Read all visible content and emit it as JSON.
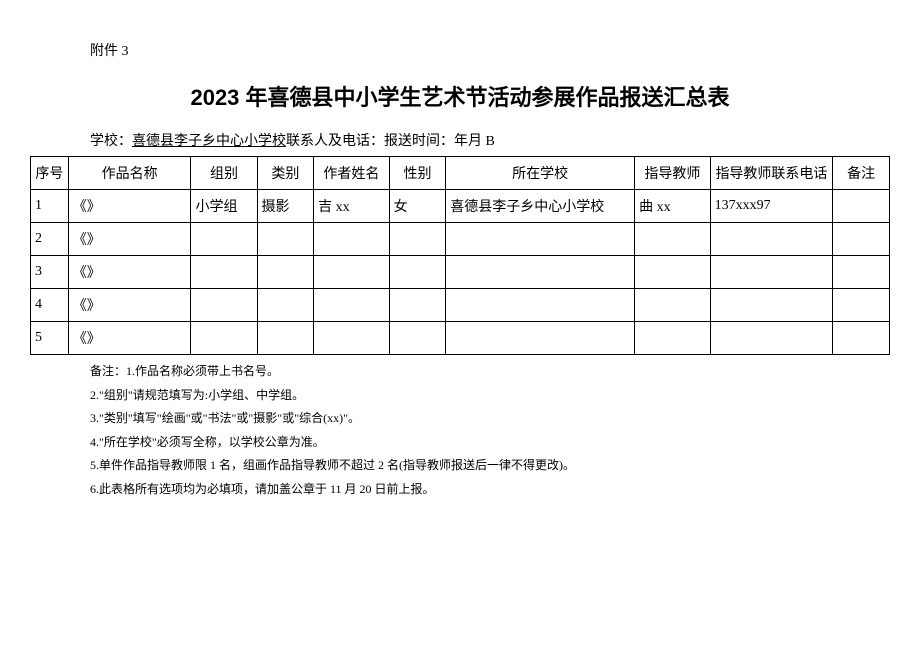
{
  "attachment_label": "附件 3",
  "title": "2023 年喜德县中小学生艺术节活动参展作品报送汇总表",
  "meta": {
    "school_label": "学校：",
    "school_name": "喜德县李子乡中心小学校",
    "contact_label": "联系人及电话：",
    "report_time_label": "报送时间：年月 B"
  },
  "columns": {
    "seq": "序号",
    "name": "作品名称",
    "group": "组别",
    "type": "类别",
    "author": "作者姓名",
    "gender": "性别",
    "school": "所在学校",
    "teacher": "指导教师",
    "phone": "指导教师联系电话",
    "remark": "备注"
  },
  "rows": [
    {
      "seq": "1",
      "name": "《》",
      "group": "小学组",
      "type": "摄影",
      "author": "吉 xx",
      "gender": "女",
      "school": "喜德县李子乡中心小学校",
      "teacher": "曲 xx",
      "phone": "137xxx97",
      "remark": ""
    },
    {
      "seq": "2",
      "name": "《》",
      "group": "",
      "type": "",
      "author": "",
      "gender": "",
      "school": "",
      "teacher": "",
      "phone": "",
      "remark": ""
    },
    {
      "seq": "3",
      "name": "《》",
      "group": "",
      "type": "",
      "author": "",
      "gender": "",
      "school": "",
      "teacher": "",
      "phone": "",
      "remark": ""
    },
    {
      "seq": "4",
      "name": "《》",
      "group": "",
      "type": "",
      "author": "",
      "gender": "",
      "school": "",
      "teacher": "",
      "phone": "",
      "remark": ""
    },
    {
      "seq": "5",
      "name": "《》",
      "group": "",
      "type": "",
      "author": "",
      "gender": "",
      "school": "",
      "teacher": "",
      "phone": "",
      "remark": ""
    }
  ],
  "notes": [
    "备注：1.作品名称必须带上书名号。",
    "2.\"组别\"请规范填写为:小学组、中学组。",
    "3.\"类别\"填写\"绘画\"或\"书法\"或\"摄影\"或\"综合(xx)\"。",
    "4.\"所在学校\"必须写全称，以学校公章为准。",
    "5.单件作品指导教师限 1 名，组画作品指导教师不超过 2 名(指导教师报送后一律不得更改)。",
    "6.此表格所有选项均为必填项，请加盖公章于 11 月 20 日前上报。"
  ]
}
